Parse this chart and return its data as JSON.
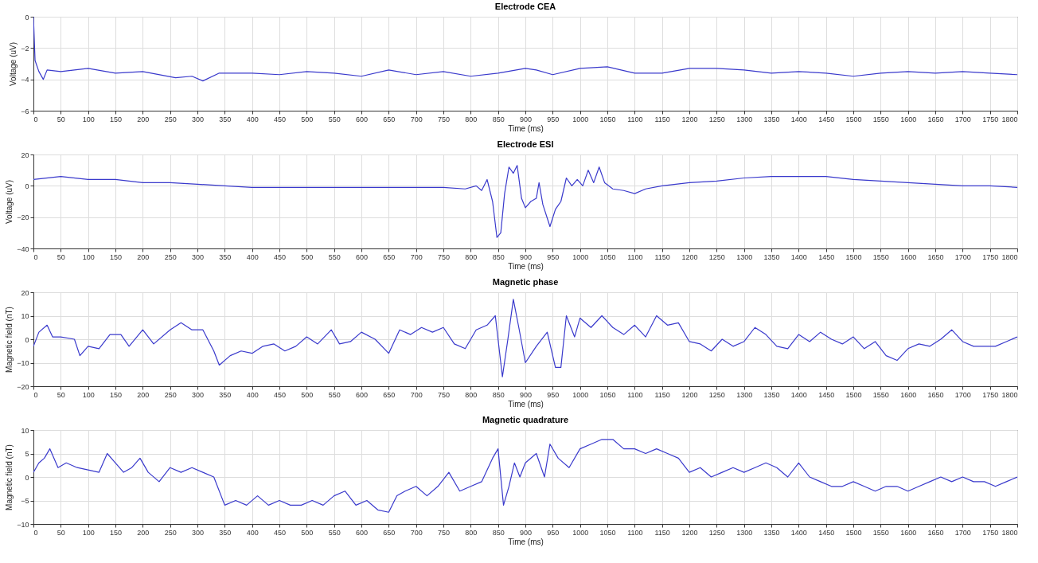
{
  "chart_data": [
    {
      "type": "line",
      "title": "Electrode CEA",
      "xlabel": "Time (ms)",
      "ylabel": "Voltage (uV)",
      "xlim": [
        0,
        1800
      ],
      "xticks": [
        0,
        50,
        100,
        150,
        200,
        250,
        300,
        350,
        400,
        450,
        500,
        550,
        600,
        650,
        700,
        750,
        800,
        850,
        900,
        950,
        1000,
        1050,
        1100,
        1150,
        1200,
        1250,
        1300,
        1350,
        1400,
        1450,
        1500,
        1550,
        1600,
        1650,
        1700,
        1750,
        1800
      ],
      "ylim": [
        -6,
        0
      ],
      "yticks": [
        -6,
        -4,
        -2,
        0
      ],
      "grid": true,
      "line_style": "solid",
      "series": [
        {
          "color": "#3a3acc",
          "x": [
            0,
            3,
            10,
            18,
            25,
            50,
            100,
            150,
            200,
            260,
            290,
            310,
            340,
            400,
            450,
            500,
            550,
            600,
            650,
            700,
            750,
            800,
            850,
            900,
            920,
            950,
            1000,
            1050,
            1100,
            1150,
            1200,
            1250,
            1300,
            1350,
            1400,
            1450,
            1500,
            1550,
            1600,
            1650,
            1700,
            1750,
            1800
          ],
          "values": [
            0,
            -2.8,
            -3.5,
            -4,
            -3.4,
            -3.5,
            -3.3,
            -3.6,
            -3.5,
            -3.9,
            -3.8,
            -4.1,
            -3.6,
            -3.6,
            -3.7,
            -3.5,
            -3.6,
            -3.8,
            -3.4,
            -3.7,
            -3.5,
            -3.8,
            -3.6,
            -3.3,
            -3.4,
            -3.7,
            -3.3,
            -3.2,
            -3.6,
            -3.6,
            -3.3,
            -3.3,
            -3.4,
            -3.6,
            -3.5,
            -3.6,
            -3.8,
            -3.6,
            -3.5,
            -3.6,
            -3.5,
            -3.6,
            -3.7
          ]
        }
      ]
    },
    {
      "type": "line",
      "title": "Electrode ESI",
      "xlabel": "Time (ms)",
      "ylabel": "Voltage (uV)",
      "xlim": [
        0,
        1800
      ],
      "xticks": [
        0,
        50,
        100,
        150,
        200,
        250,
        300,
        350,
        400,
        450,
        500,
        550,
        600,
        650,
        700,
        750,
        800,
        850,
        900,
        950,
        1000,
        1050,
        1100,
        1150,
        1200,
        1250,
        1300,
        1350,
        1400,
        1450,
        1500,
        1550,
        1600,
        1650,
        1700,
        1750,
        1800
      ],
      "ylim": [
        -40,
        20
      ],
      "yticks": [
        -40,
        -20,
        0,
        20
      ],
      "grid": true,
      "line_style": "solid",
      "series": [
        {
          "color": "#3a3acc",
          "x": [
            0,
            50,
            100,
            150,
            200,
            250,
            300,
            350,
            400,
            450,
            500,
            550,
            600,
            650,
            700,
            750,
            790,
            810,
            820,
            830,
            840,
            848,
            855,
            862,
            870,
            878,
            885,
            893,
            900,
            910,
            920,
            925,
            932,
            945,
            955,
            965,
            975,
            985,
            995,
            1005,
            1015,
            1025,
            1035,
            1045,
            1060,
            1080,
            1100,
            1120,
            1150,
            1200,
            1250,
            1300,
            1350,
            1400,
            1450,
            1500,
            1550,
            1600,
            1650,
            1700,
            1750,
            1800
          ],
          "values": [
            4,
            6,
            4,
            4,
            2,
            2,
            1,
            0,
            -1,
            -1,
            -1,
            -1,
            -1,
            -1,
            -1,
            -1,
            -2,
            0,
            -3,
            4,
            -10,
            -33,
            -30,
            -5,
            12,
            8,
            13,
            -8,
            -14,
            -10,
            -8,
            2,
            -12,
            -26,
            -15,
            -10,
            5,
            0,
            4,
            0,
            10,
            2,
            12,
            2,
            -2,
            -3,
            -5,
            -2,
            0,
            2,
            3,
            5,
            6,
            6,
            6,
            4,
            3,
            2,
            1,
            0,
            0,
            -1
          ]
        }
      ]
    },
    {
      "type": "line",
      "title": "Magnetic phase",
      "xlabel": "Time (ms)",
      "ylabel": "Magnetic field (nT)",
      "xlim": [
        0,
        1800
      ],
      "xticks": [
        0,
        50,
        100,
        150,
        200,
        250,
        300,
        350,
        400,
        450,
        500,
        550,
        600,
        650,
        700,
        750,
        800,
        850,
        900,
        950,
        1000,
        1050,
        1100,
        1150,
        1200,
        1250,
        1300,
        1350,
        1400,
        1450,
        1500,
        1550,
        1600,
        1650,
        1700,
        1750,
        1800
      ],
      "ylim": [
        -20,
        20
      ],
      "yticks": [
        -20,
        -10,
        0,
        10,
        20
      ],
      "grid": true,
      "line_style": "solid",
      "series": [
        {
          "color": "#3a3acc",
          "x": [
            0,
            10,
            25,
            35,
            50,
            75,
            85,
            100,
            120,
            140,
            160,
            175,
            200,
            220,
            250,
            270,
            290,
            310,
            330,
            340,
            360,
            380,
            400,
            420,
            440,
            460,
            480,
            500,
            520,
            545,
            560,
            580,
            600,
            625,
            650,
            670,
            690,
            710,
            730,
            750,
            770,
            790,
            810,
            830,
            845,
            858,
            868,
            878,
            888,
            900,
            920,
            940,
            955,
            965,
            975,
            990,
            1000,
            1020,
            1040,
            1060,
            1080,
            1100,
            1120,
            1140,
            1160,
            1180,
            1200,
            1220,
            1240,
            1260,
            1280,
            1300,
            1320,
            1340,
            1360,
            1380,
            1400,
            1420,
            1440,
            1460,
            1480,
            1500,
            1520,
            1540,
            1560,
            1580,
            1600,
            1620,
            1640,
            1660,
            1680,
            1700,
            1720,
            1740,
            1760,
            1780,
            1800
          ],
          "values": [
            -3,
            3,
            6,
            1,
            1,
            0,
            -7,
            -3,
            -4,
            2,
            2,
            -3,
            4,
            -2,
            4,
            7,
            4,
            4,
            -5,
            -11,
            -7,
            -5,
            -6,
            -3,
            -2,
            -5,
            -3,
            1,
            -2,
            4,
            -2,
            -1,
            3,
            0,
            -6,
            4,
            2,
            5,
            3,
            5,
            -2,
            -4,
            4,
            6,
            10,
            -16,
            0,
            17,
            5,
            -10,
            -3,
            3,
            -12,
            -12,
            10,
            1,
            9,
            5,
            10,
            5,
            2,
            6,
            1,
            10,
            6,
            7,
            -1,
            -2,
            -5,
            0,
            -3,
            -1,
            5,
            2,
            -3,
            -4,
            2,
            -1,
            3,
            0,
            -2,
            1,
            -4,
            -1,
            -7,
            -9,
            -4,
            -2,
            -3,
            0,
            4,
            -1,
            -3,
            -3,
            -3,
            -1,
            1
          ]
        }
      ]
    },
    {
      "type": "line",
      "title": "Magnetic quadrature",
      "xlabel": "Time (ms)",
      "ylabel": "Magnetic field (nT)",
      "xlim": [
        0,
        1800
      ],
      "xticks": [
        0,
        50,
        100,
        150,
        200,
        250,
        300,
        350,
        400,
        450,
        500,
        550,
        600,
        650,
        700,
        750,
        800,
        850,
        900,
        950,
        1000,
        1050,
        1100,
        1150,
        1200,
        1250,
        1300,
        1350,
        1400,
        1450,
        1500,
        1550,
        1600,
        1650,
        1700,
        1750,
        1800
      ],
      "ylim": [
        -10,
        10
      ],
      "yticks": [
        -10,
        -5,
        0,
        5,
        10
      ],
      "grid": true,
      "line_style": "solid",
      "series": [
        {
          "color": "#3a3acc",
          "x": [
            0,
            10,
            20,
            30,
            45,
            60,
            80,
            100,
            120,
            135,
            150,
            165,
            180,
            195,
            210,
            230,
            250,
            270,
            290,
            310,
            330,
            350,
            370,
            390,
            410,
            430,
            450,
            470,
            490,
            510,
            530,
            550,
            570,
            590,
            610,
            630,
            650,
            665,
            680,
            700,
            720,
            740,
            760,
            780,
            800,
            820,
            840,
            850,
            860,
            870,
            880,
            890,
            900,
            920,
            935,
            945,
            960,
            980,
            1000,
            1020,
            1040,
            1060,
            1080,
            1100,
            1120,
            1140,
            1160,
            1180,
            1200,
            1220,
            1240,
            1260,
            1280,
            1300,
            1320,
            1340,
            1360,
            1380,
            1400,
            1420,
            1440,
            1460,
            1480,
            1500,
            1520,
            1540,
            1560,
            1580,
            1600,
            1620,
            1640,
            1660,
            1680,
            1700,
            1720,
            1740,
            1760,
            1780,
            1800
          ],
          "values": [
            1,
            3,
            4,
            6,
            2,
            3,
            2,
            1.5,
            1,
            5,
            3,
            1,
            2,
            4,
            1,
            -1,
            2,
            1,
            2,
            1,
            0,
            -6,
            -5,
            -6,
            -4,
            -6,
            -5,
            -6,
            -6,
            -5,
            -6,
            -4,
            -3,
            -6,
            -5,
            -7,
            -7.5,
            -4,
            -3,
            -2,
            -4,
            -2,
            1,
            -3,
            -2,
            -1,
            4,
            6,
            -6,
            -2,
            3,
            0,
            3,
            5,
            0,
            7,
            4,
            2,
            6,
            7,
            8,
            8,
            6,
            6,
            5,
            6,
            5,
            4,
            1,
            2,
            0,
            1,
            2,
            1,
            2,
            3,
            2,
            0,
            3,
            0,
            -1,
            -2,
            -2,
            -1,
            -2,
            -3,
            -2,
            -2,
            -3,
            -2,
            -1,
            0,
            -1,
            0,
            -1,
            -1,
            -2,
            -1,
            0
          ]
        }
      ]
    }
  ]
}
